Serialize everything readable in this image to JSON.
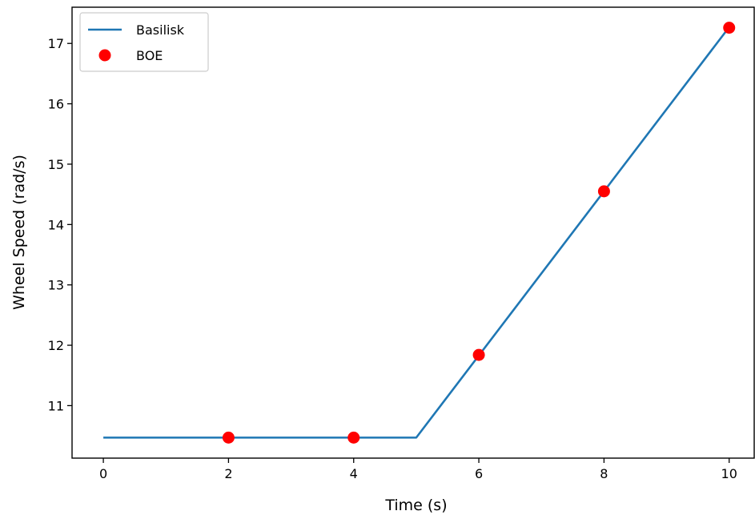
{
  "chart_data": {
    "type": "line",
    "xlabel": "Time (s)",
    "ylabel": "Wheel Speed (rad/s)",
    "xlim": [
      -0.5,
      10.4
    ],
    "ylim": [
      10.13,
      17.6
    ],
    "xticks": [
      0,
      2,
      4,
      6,
      8,
      10
    ],
    "xtick_labels": [
      "0",
      "2",
      "4",
      "6",
      "8",
      "10"
    ],
    "yticks": [
      11,
      12,
      13,
      14,
      15,
      16,
      17
    ],
    "ytick_labels": [
      "11",
      "12",
      "13",
      "14",
      "15",
      "16",
      "17"
    ],
    "grid": false,
    "legend": "upper-left",
    "series": [
      {
        "name": "Basilisk",
        "kind": "line",
        "color": "#1f77b4",
        "x": [
          0,
          5,
          10
        ],
        "y": [
          10.47,
          10.47,
          17.27
        ]
      },
      {
        "name": "BOE",
        "kind": "marker",
        "color": "#ff0000",
        "x": [
          2,
          4,
          6,
          8,
          10
        ],
        "y": [
          10.47,
          10.47,
          11.84,
          14.55,
          17.26
        ]
      }
    ]
  }
}
